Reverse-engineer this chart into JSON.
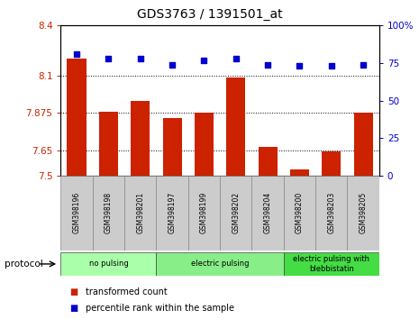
{
  "title": "GDS3763 / 1391501_at",
  "samples": [
    "GSM398196",
    "GSM398198",
    "GSM398201",
    "GSM398197",
    "GSM398199",
    "GSM398202",
    "GSM398204",
    "GSM398200",
    "GSM398203",
    "GSM398205"
  ],
  "bar_values": [
    8.2,
    7.88,
    7.95,
    7.845,
    7.875,
    8.09,
    7.67,
    7.535,
    7.645,
    7.875
  ],
  "dot_values": [
    81,
    78,
    78,
    74,
    77,
    78,
    74,
    73,
    73,
    74
  ],
  "bar_color": "#cc2200",
  "dot_color": "#0000cc",
  "ylim_left": [
    7.5,
    8.4
  ],
  "ylim_right": [
    0,
    100
  ],
  "yticks_left": [
    7.5,
    7.65,
    7.875,
    8.1,
    8.4
  ],
  "ytick_labels_left": [
    "7.5",
    "7.65",
    "7.875",
    "8.1",
    "8.4"
  ],
  "yticks_right": [
    0,
    25,
    50,
    75,
    100
  ],
  "ytick_labels_right": [
    "0",
    "25",
    "50",
    "75",
    "100%"
  ],
  "hlines": [
    7.65,
    7.875,
    8.1
  ],
  "groups": [
    {
      "label": "no pulsing",
      "start": 0,
      "end": 3,
      "color": "#aaffaa"
    },
    {
      "label": "electric pulsing",
      "start": 3,
      "end": 7,
      "color": "#88ee88"
    },
    {
      "label": "electric pulsing with\nblebbistatin",
      "start": 7,
      "end": 10,
      "color": "#44dd44"
    }
  ],
  "protocol_label": "protocol",
  "legend_items": [
    {
      "label": "transformed count",
      "color": "#cc2200"
    },
    {
      "label": "percentile rank within the sample",
      "color": "#0000cc"
    }
  ],
  "left_color": "#cc2200",
  "right_color": "#0000cc",
  "background_color": "#ffffff"
}
